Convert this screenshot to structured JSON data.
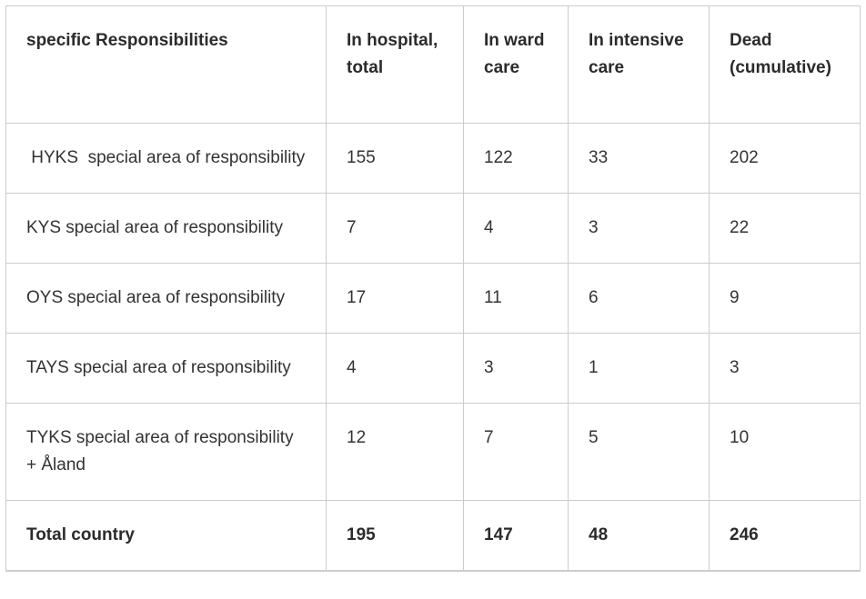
{
  "colors": {
    "background": "#ffffff",
    "border": "#cccccc",
    "header_text": "#2b2b2b",
    "body_text": "#333333"
  },
  "chart_data": {
    "type": "table",
    "columns": [
      "specific Responsibilities",
      "In hospital, total",
      "In ward care",
      "In intensive care",
      "Dead (cumulative)"
    ],
    "rows": [
      {
        "area": " HYKS  special area of responsibility",
        "in_hospital_total": 155,
        "in_ward_care": 122,
        "in_intensive_care": 33,
        "dead_cumulative": 202
      },
      {
        "area": "KYS special area of responsibility",
        "in_hospital_total": 7,
        "in_ward_care": 4,
        "in_intensive_care": 3,
        "dead_cumulative": 22
      },
      {
        "area": "OYS special area of responsibility",
        "in_hospital_total": 17,
        "in_ward_care": 11,
        "in_intensive_care": 6,
        "dead_cumulative": 9
      },
      {
        "area": "TAYS special area of responsibility",
        "in_hospital_total": 4,
        "in_ward_care": 3,
        "in_intensive_care": 1,
        "dead_cumulative": 3
      },
      {
        "area": "TYKS special area of responsibility + Åland",
        "in_hospital_total": 12,
        "in_ward_care": 7,
        "in_intensive_care": 5,
        "dead_cumulative": 10
      }
    ],
    "total": {
      "area": "Total country",
      "in_hospital_total": 195,
      "in_ward_care": 147,
      "in_intensive_care": 48,
      "dead_cumulative": 246
    }
  }
}
